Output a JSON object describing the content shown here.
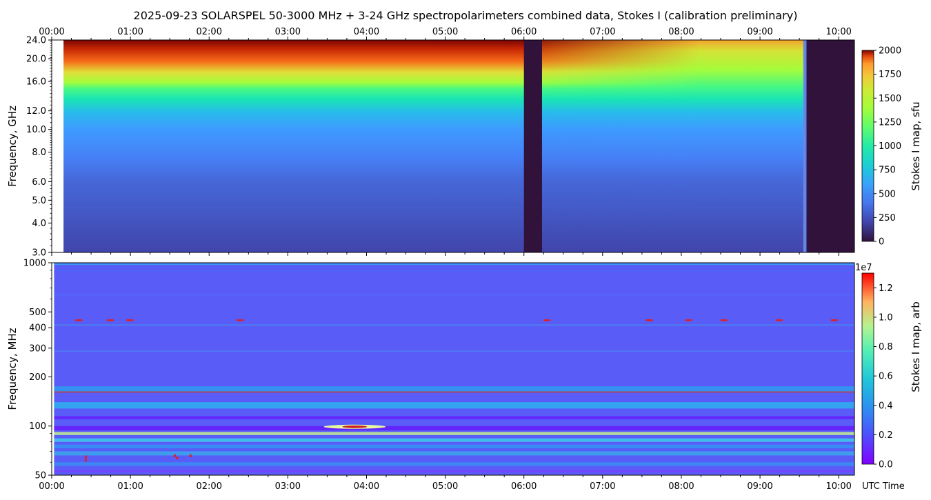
{
  "title": "2025-09-23  SOLARSPEL  50-3000 MHz  +  3-24 GHz  spectropolarimeters combined data,  Stokes I  (calibration preliminary)",
  "x_axis": {
    "ticks": [
      "00:00",
      "01:00",
      "02:00",
      "03:00",
      "04:00",
      "05:00",
      "06:00",
      "07:00",
      "08:00",
      "09:00",
      "10:00"
    ],
    "range_hours": [
      0,
      10.2
    ],
    "label": "UTC Time"
  },
  "chart_data": [
    {
      "type": "heatmap",
      "ylabel": "Frequency, GHz",
      "yticks": [
        "3.0",
        "4.0",
        "5.0",
        "6.0",
        "8.0",
        "10.0",
        "12.0",
        "16.0",
        "20.0",
        "24.0"
      ],
      "ylim": [
        3,
        24
      ],
      "yscale": "log",
      "colorbar": {
        "label": "Stokes I map, sfu",
        "ticks": [
          "0",
          "250",
          "500",
          "750",
          "1000",
          "1250",
          "1500",
          "1750",
          "2000"
        ],
        "range": [
          0,
          2000
        ]
      },
      "data_start_hours": 0.15,
      "gaps_hours": [
        [
          6.0,
          6.23
        ],
        [
          9.55,
          10.2
        ]
      ],
      "colors": {
        "hot": "#7a0403",
        "warm": "#fb8022",
        "mid": "#a4fc3c",
        "cool": "#1ae4b6",
        "cold": "#3e9bfe",
        "base": "#4145ab",
        "gap": "#30123b"
      }
    },
    {
      "type": "heatmap",
      "ylabel": "Frequency, MHz",
      "yticks": [
        "50",
        "100",
        "200",
        "300",
        "400",
        "500",
        "1000"
      ],
      "ylim": [
        50,
        1000
      ],
      "yscale": "log",
      "colorbar": {
        "label": "Stokes I map, arb",
        "ticks": [
          "0.0",
          "0.2",
          "0.4",
          "0.6",
          "0.8",
          "1.0",
          "1.2"
        ],
        "range": [
          0,
          1.3
        ],
        "exponent": "1e7"
      },
      "data_start_hours": 0.03,
      "colors": {
        "background": "#5a5cf8",
        "bright": "#2bd0e8",
        "hot": "#e02020"
      }
    }
  ]
}
